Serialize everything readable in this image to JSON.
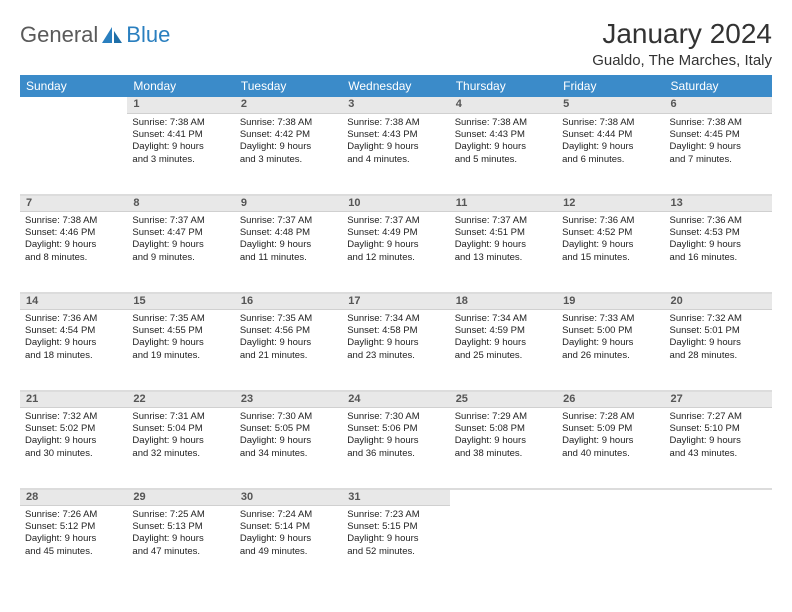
{
  "logo": {
    "text1": "General",
    "text2": "Blue"
  },
  "title": "January 2024",
  "location": "Gualdo, The Marches, Italy",
  "colors": {
    "header_bg": "#3b8bc9",
    "header_text": "#ffffff",
    "daynum_bg": "#e8e8e8",
    "logo_gray": "#5a5a5a",
    "logo_blue": "#2a7fbf"
  },
  "weekdays": [
    "Sunday",
    "Monday",
    "Tuesday",
    "Wednesday",
    "Thursday",
    "Friday",
    "Saturday"
  ],
  "weeks": [
    [
      null,
      {
        "n": "1",
        "sr": "Sunrise: 7:38 AM",
        "ss": "Sunset: 4:41 PM",
        "d1": "Daylight: 9 hours",
        "d2": "and 3 minutes."
      },
      {
        "n": "2",
        "sr": "Sunrise: 7:38 AM",
        "ss": "Sunset: 4:42 PM",
        "d1": "Daylight: 9 hours",
        "d2": "and 3 minutes."
      },
      {
        "n": "3",
        "sr": "Sunrise: 7:38 AM",
        "ss": "Sunset: 4:43 PM",
        "d1": "Daylight: 9 hours",
        "d2": "and 4 minutes."
      },
      {
        "n": "4",
        "sr": "Sunrise: 7:38 AM",
        "ss": "Sunset: 4:43 PM",
        "d1": "Daylight: 9 hours",
        "d2": "and 5 minutes."
      },
      {
        "n": "5",
        "sr": "Sunrise: 7:38 AM",
        "ss": "Sunset: 4:44 PM",
        "d1": "Daylight: 9 hours",
        "d2": "and 6 minutes."
      },
      {
        "n": "6",
        "sr": "Sunrise: 7:38 AM",
        "ss": "Sunset: 4:45 PM",
        "d1": "Daylight: 9 hours",
        "d2": "and 7 minutes."
      }
    ],
    [
      {
        "n": "7",
        "sr": "Sunrise: 7:38 AM",
        "ss": "Sunset: 4:46 PM",
        "d1": "Daylight: 9 hours",
        "d2": "and 8 minutes."
      },
      {
        "n": "8",
        "sr": "Sunrise: 7:37 AM",
        "ss": "Sunset: 4:47 PM",
        "d1": "Daylight: 9 hours",
        "d2": "and 9 minutes."
      },
      {
        "n": "9",
        "sr": "Sunrise: 7:37 AM",
        "ss": "Sunset: 4:48 PM",
        "d1": "Daylight: 9 hours",
        "d2": "and 11 minutes."
      },
      {
        "n": "10",
        "sr": "Sunrise: 7:37 AM",
        "ss": "Sunset: 4:49 PM",
        "d1": "Daylight: 9 hours",
        "d2": "and 12 minutes."
      },
      {
        "n": "11",
        "sr": "Sunrise: 7:37 AM",
        "ss": "Sunset: 4:51 PM",
        "d1": "Daylight: 9 hours",
        "d2": "and 13 minutes."
      },
      {
        "n": "12",
        "sr": "Sunrise: 7:36 AM",
        "ss": "Sunset: 4:52 PM",
        "d1": "Daylight: 9 hours",
        "d2": "and 15 minutes."
      },
      {
        "n": "13",
        "sr": "Sunrise: 7:36 AM",
        "ss": "Sunset: 4:53 PM",
        "d1": "Daylight: 9 hours",
        "d2": "and 16 minutes."
      }
    ],
    [
      {
        "n": "14",
        "sr": "Sunrise: 7:36 AM",
        "ss": "Sunset: 4:54 PM",
        "d1": "Daylight: 9 hours",
        "d2": "and 18 minutes."
      },
      {
        "n": "15",
        "sr": "Sunrise: 7:35 AM",
        "ss": "Sunset: 4:55 PM",
        "d1": "Daylight: 9 hours",
        "d2": "and 19 minutes."
      },
      {
        "n": "16",
        "sr": "Sunrise: 7:35 AM",
        "ss": "Sunset: 4:56 PM",
        "d1": "Daylight: 9 hours",
        "d2": "and 21 minutes."
      },
      {
        "n": "17",
        "sr": "Sunrise: 7:34 AM",
        "ss": "Sunset: 4:58 PM",
        "d1": "Daylight: 9 hours",
        "d2": "and 23 minutes."
      },
      {
        "n": "18",
        "sr": "Sunrise: 7:34 AM",
        "ss": "Sunset: 4:59 PM",
        "d1": "Daylight: 9 hours",
        "d2": "and 25 minutes."
      },
      {
        "n": "19",
        "sr": "Sunrise: 7:33 AM",
        "ss": "Sunset: 5:00 PM",
        "d1": "Daylight: 9 hours",
        "d2": "and 26 minutes."
      },
      {
        "n": "20",
        "sr": "Sunrise: 7:32 AM",
        "ss": "Sunset: 5:01 PM",
        "d1": "Daylight: 9 hours",
        "d2": "and 28 minutes."
      }
    ],
    [
      {
        "n": "21",
        "sr": "Sunrise: 7:32 AM",
        "ss": "Sunset: 5:02 PM",
        "d1": "Daylight: 9 hours",
        "d2": "and 30 minutes."
      },
      {
        "n": "22",
        "sr": "Sunrise: 7:31 AM",
        "ss": "Sunset: 5:04 PM",
        "d1": "Daylight: 9 hours",
        "d2": "and 32 minutes."
      },
      {
        "n": "23",
        "sr": "Sunrise: 7:30 AM",
        "ss": "Sunset: 5:05 PM",
        "d1": "Daylight: 9 hours",
        "d2": "and 34 minutes."
      },
      {
        "n": "24",
        "sr": "Sunrise: 7:30 AM",
        "ss": "Sunset: 5:06 PM",
        "d1": "Daylight: 9 hours",
        "d2": "and 36 minutes."
      },
      {
        "n": "25",
        "sr": "Sunrise: 7:29 AM",
        "ss": "Sunset: 5:08 PM",
        "d1": "Daylight: 9 hours",
        "d2": "and 38 minutes."
      },
      {
        "n": "26",
        "sr": "Sunrise: 7:28 AM",
        "ss": "Sunset: 5:09 PM",
        "d1": "Daylight: 9 hours",
        "d2": "and 40 minutes."
      },
      {
        "n": "27",
        "sr": "Sunrise: 7:27 AM",
        "ss": "Sunset: 5:10 PM",
        "d1": "Daylight: 9 hours",
        "d2": "and 43 minutes."
      }
    ],
    [
      {
        "n": "28",
        "sr": "Sunrise: 7:26 AM",
        "ss": "Sunset: 5:12 PM",
        "d1": "Daylight: 9 hours",
        "d2": "and 45 minutes."
      },
      {
        "n": "29",
        "sr": "Sunrise: 7:25 AM",
        "ss": "Sunset: 5:13 PM",
        "d1": "Daylight: 9 hours",
        "d2": "and 47 minutes."
      },
      {
        "n": "30",
        "sr": "Sunrise: 7:24 AM",
        "ss": "Sunset: 5:14 PM",
        "d1": "Daylight: 9 hours",
        "d2": "and 49 minutes."
      },
      {
        "n": "31",
        "sr": "Sunrise: 7:23 AM",
        "ss": "Sunset: 5:15 PM",
        "d1": "Daylight: 9 hours",
        "d2": "and 52 minutes."
      },
      null,
      null,
      null
    ]
  ]
}
